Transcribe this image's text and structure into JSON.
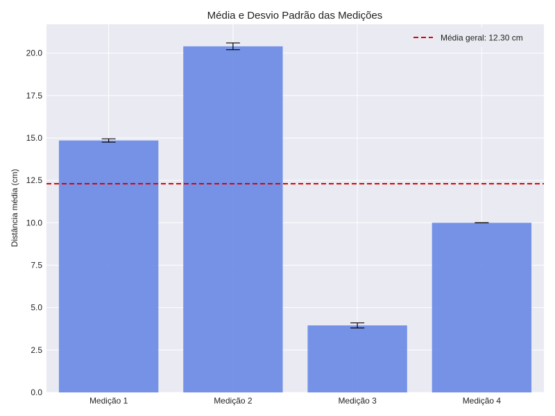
{
  "chart_data": {
    "type": "bar",
    "title": "Média e Desvio Padrão das Medições",
    "xlabel": "",
    "ylabel": "Distância média (cm)",
    "categories": [
      "Medição 1",
      "Medição 2",
      "Medição 3",
      "Medição 4"
    ],
    "values": [
      14.85,
      20.4,
      3.95,
      10.0
    ],
    "errors": [
      0.1,
      0.2,
      0.15,
      0.0
    ],
    "ylim": [
      0,
      21.7
    ],
    "yticks": [
      "0.0",
      "2.5",
      "5.0",
      "7.5",
      "10.0",
      "12.5",
      "15.0",
      "17.5",
      "20.0"
    ],
    "reference_line": {
      "value": 12.3,
      "label": "Média geral: 12.30 cm",
      "color": "#dd0000",
      "style": "dashed"
    },
    "legend": {
      "position": "top-right"
    },
    "grid": true,
    "colors": {
      "bar": "#6f8de6",
      "plot_bg": "#eaeaf2",
      "grid": "#ffffff",
      "error": "#000000"
    }
  }
}
